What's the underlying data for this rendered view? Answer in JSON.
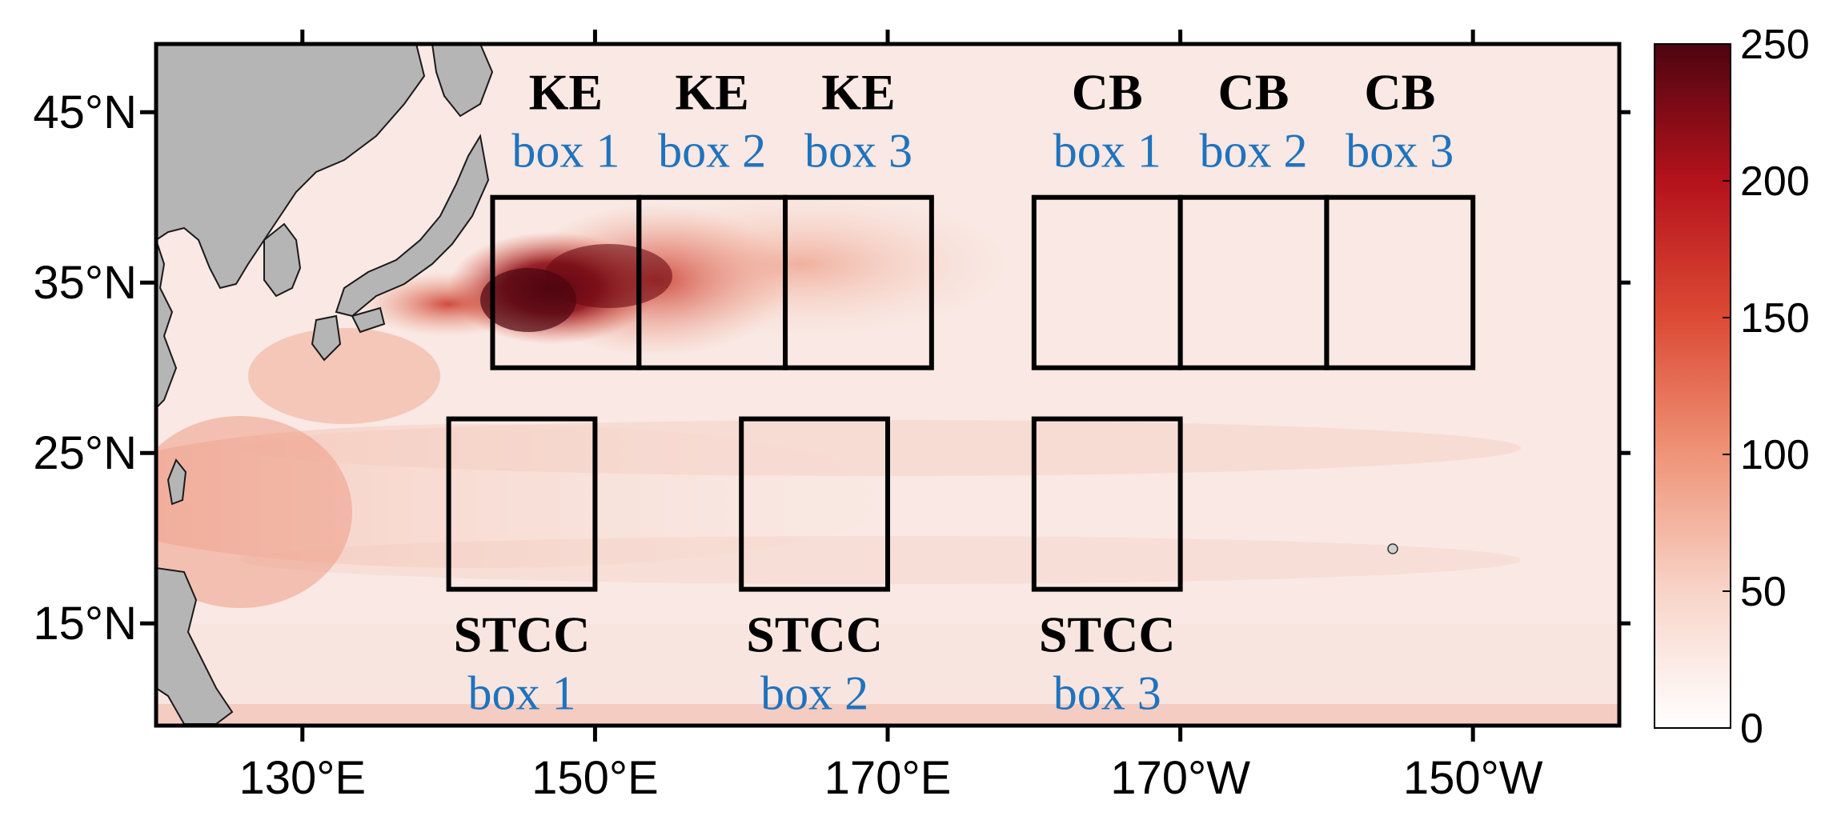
{
  "map": {
    "lat_ticks": [
      {
        "value": 45,
        "label": "45°N"
      },
      {
        "value": 35,
        "label": "35°N"
      },
      {
        "value": 25,
        "label": "25°N"
      },
      {
        "value": 15,
        "label": "15°N"
      }
    ],
    "lon_ticks": [
      {
        "value": 130,
        "label": "130°E"
      },
      {
        "value": 150,
        "label": "150°E"
      },
      {
        "value": 170,
        "label": "170°E"
      },
      {
        "value": 190,
        "label": "170°W"
      },
      {
        "value": 210,
        "label": "150°W"
      }
    ],
    "lon_range": [
      120,
      220
    ],
    "lat_range": [
      9,
      49
    ],
    "land_color": "#b5b5b5",
    "box_label_color": "#1f73be",
    "regions": [
      {
        "title": "KE",
        "sub": "box 1",
        "lon": [
          143,
          153
        ],
        "lat": [
          30,
          40
        ],
        "label_pos": "above"
      },
      {
        "title": "KE",
        "sub": "box 2",
        "lon": [
          153,
          163
        ],
        "lat": [
          30,
          40
        ],
        "label_pos": "above"
      },
      {
        "title": "KE",
        "sub": "box 3",
        "lon": [
          163,
          173
        ],
        "lat": [
          30,
          40
        ],
        "label_pos": "above"
      },
      {
        "title": "CB",
        "sub": "box 1",
        "lon": [
          180,
          190
        ],
        "lat": [
          30,
          40
        ],
        "label_pos": "above"
      },
      {
        "title": "CB",
        "sub": "box 2",
        "lon": [
          190,
          200
        ],
        "lat": [
          30,
          40
        ],
        "label_pos": "above"
      },
      {
        "title": "CB",
        "sub": "box 3",
        "lon": [
          200,
          210
        ],
        "lat": [
          30,
          40
        ],
        "label_pos": "above"
      },
      {
        "title": "STCC",
        "sub": "box 1",
        "lon": [
          140,
          150
        ],
        "lat": [
          17,
          27
        ],
        "label_pos": "below"
      },
      {
        "title": "STCC",
        "sub": "box 2",
        "lon": [
          160,
          170
        ],
        "lat": [
          17,
          27
        ],
        "label_pos": "below"
      },
      {
        "title": "STCC",
        "sub": "box 3",
        "lon": [
          180,
          190
        ],
        "lat": [
          17,
          27
        ],
        "label_pos": "below"
      }
    ]
  },
  "colorbar": {
    "min": 0,
    "max": 250,
    "ticks": [
      {
        "value": 250,
        "label": "250"
      },
      {
        "value": 200,
        "label": "200"
      },
      {
        "value": 150,
        "label": "150"
      },
      {
        "value": 100,
        "label": "100"
      },
      {
        "value": 50,
        "label": "50"
      },
      {
        "value": 0,
        "label": "0"
      }
    ],
    "colors": [
      "#ffffff",
      "#f8d4c8",
      "#ef9478",
      "#dc4a34",
      "#b5121c",
      "#4d0510"
    ]
  }
}
